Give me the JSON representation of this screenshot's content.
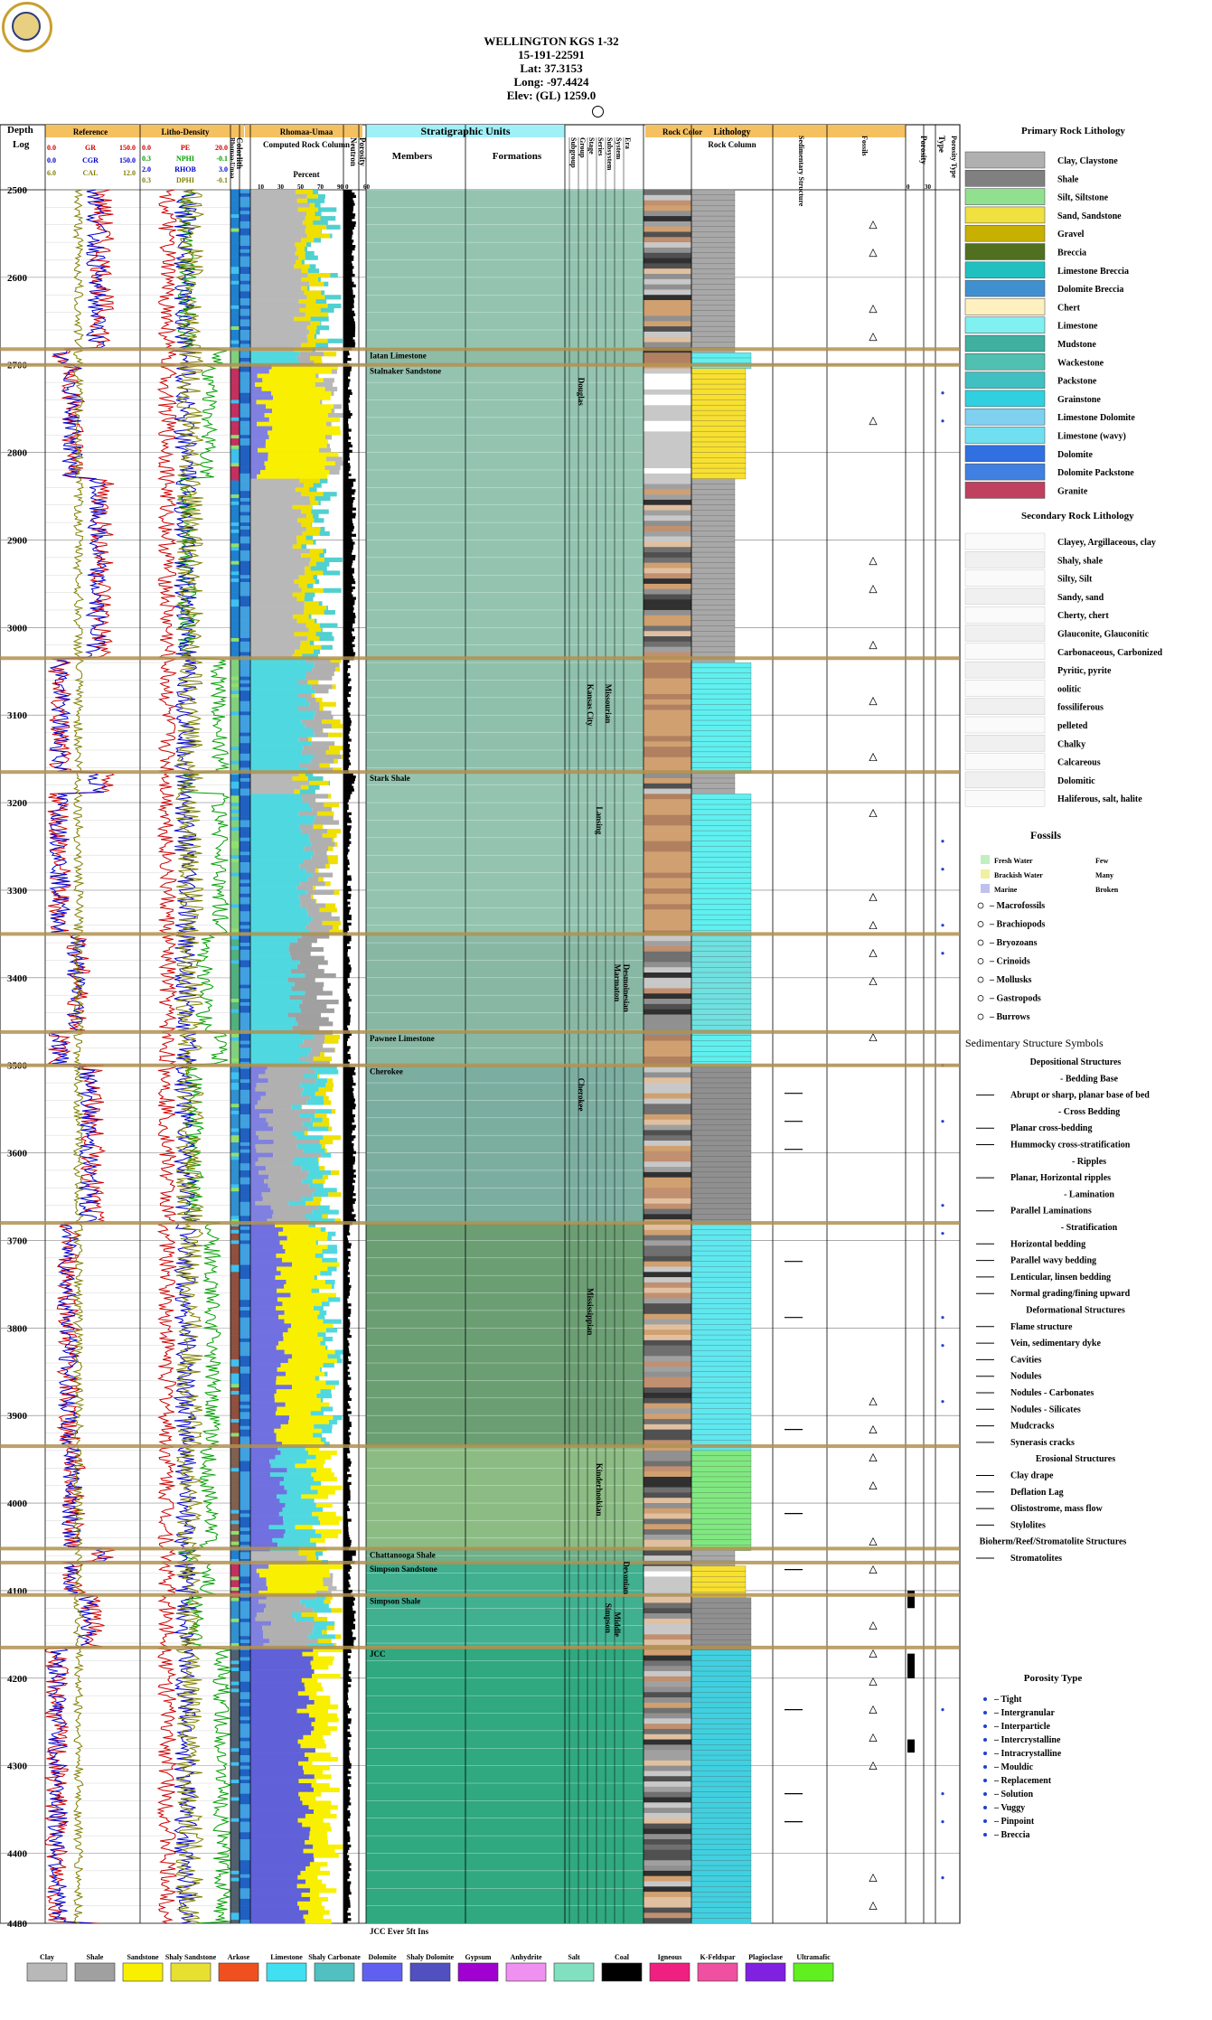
{
  "header": {
    "title": "WELLINGTON KGS 1-32",
    "api": "15-191-22591",
    "lat": "Lat: 37.3153",
    "long": "Long: -97.4424",
    "elev": "Elev: (GL) 1259.0"
  },
  "columns": {
    "depth": "Depth",
    "log": "Log",
    "reference": "Reference",
    "litho_density": "Litho-Density",
    "colorlith": "Colorlith",
    "rhomaa_umaa_short": "Rhomaa-Umaa",
    "rhomaa_umaa": "Rhomaa-Umaa",
    "computed_rock_column": "Computed Rock Column",
    "percent": "Percent",
    "porosity": "Porosity",
    "neutron": "Neutron",
    "stratigraphic_units": "Stratigraphic Units",
    "members": "Members",
    "formations": "Formations",
    "subgroup": "Subgroup",
    "group": "Group",
    "stage": "Stage",
    "series": "Series",
    "subsystem": "Subsystem",
    "system": "System",
    "era": "Era",
    "rock_color": "Rock Color",
    "lithology": "Lithology",
    "rock_column": "Rock Column",
    "sedimentary_structure": "Sedimentary Structure",
    "fossils": "Fossils",
    "porosity2": "Porosity",
    "type": "Type",
    "porosity_type": "Porosity Type"
  },
  "curves": {
    "gr": {
      "name": "GR",
      "min": "0.0",
      "max": "150.0",
      "color": "#d00000"
    },
    "cgr": {
      "name": "CGR",
      "min": "0.0",
      "max": "150.0",
      "color": "#0000d0"
    },
    "cal": {
      "name": "CAL",
      "min": "6.0",
      "max": "12.0",
      "color": "#808000"
    },
    "pe": {
      "name": "PE",
      "min": "0.0",
      "max": "20.0",
      "color": "#d00000"
    },
    "nphi": {
      "name": "NPHI",
      "min": "0.3",
      "max": "-0.1",
      "color": "#00a000"
    },
    "rhob": {
      "name": "RHOB",
      "min": "2.0",
      "max": "3.0",
      "color": "#0000d0"
    },
    "dphi": {
      "name": "DPHI",
      "min": "0.3",
      "max": "-0.1",
      "color": "#808000"
    }
  },
  "percent_ticks": [
    "10",
    "30",
    "50",
    "70",
    "90"
  ],
  "neutron_ticks": [
    "0",
    "60"
  ],
  "porosity_ticks": [
    "0",
    "30"
  ],
  "chart_data": {
    "type": "well_log",
    "ylim": [
      2500,
      4480
    ],
    "depth_ticks": [
      2500,
      2600,
      2700,
      2800,
      2900,
      3000,
      3100,
      3200,
      3300,
      3400,
      3500,
      3600,
      3700,
      3800,
      3900,
      4000,
      4100,
      4200,
      4300,
      4400,
      4480
    ],
    "tops": [
      {
        "depth": 2682,
        "name": "Iatan Limestone"
      },
      {
        "depth": 2700,
        "name": "Stalnaker Sandstone"
      },
      {
        "depth": 3035,
        "name": ""
      },
      {
        "depth": 3165,
        "name": "Stark Shale"
      },
      {
        "depth": 3350,
        "name": ""
      },
      {
        "depth": 3462,
        "name": "Pawnee Limestone"
      },
      {
        "depth": 3500,
        "name": "Cherokee"
      },
      {
        "depth": 3680,
        "name": ""
      },
      {
        "depth": 3935,
        "name": ""
      },
      {
        "depth": 4052,
        "name": "Chattanooga Shale"
      },
      {
        "depth": 4068,
        "name": "Simpson Sandstone"
      },
      {
        "depth": 4105,
        "name": "Simpson Shale"
      },
      {
        "depth": 4165,
        "name": "JCC"
      }
    ],
    "groups": [
      {
        "depth": 2700,
        "name": "Douglas"
      },
      {
        "depth": 3050,
        "name": "Kansas City"
      },
      {
        "depth": 3190,
        "name": "Lansing"
      },
      {
        "depth": 3050,
        "name": "Missourian"
      },
      {
        "depth": 3370,
        "name": "Marmaton"
      },
      {
        "depth": 3370,
        "name": "Desmoinesian"
      },
      {
        "depth": 3500,
        "name": "Cherokee"
      },
      {
        "depth": 3740,
        "name": "Mississippian"
      },
      {
        "depth": 3940,
        "name": "Kinderhookian"
      },
      {
        "depth": 4100,
        "name": "Simpson"
      },
      {
        "depth": 4110,
        "name": "Middle"
      },
      {
        "depth": 4052,
        "name": "Devonian"
      }
    ],
    "bottom_note": "JCC Ever 5ft Ins"
  },
  "legend": {
    "primary_title": "Primary Rock Lithology",
    "primary": [
      {
        "label": "Clay, Claystone",
        "color": "#b0b0b0"
      },
      {
        "label": "Shale",
        "color": "#808080"
      },
      {
        "label": "Silt, Siltstone",
        "color": "#90e090"
      },
      {
        "label": "Sand, Sandstone",
        "color": "#f0e040"
      },
      {
        "label": "Gravel",
        "color": "#c8b000"
      },
      {
        "label": "Breccia",
        "color": "#507020"
      },
      {
        "label": "Limestone Breccia",
        "color": "#20c0c0"
      },
      {
        "label": "Dolomite Breccia",
        "color": "#4090d0"
      },
      {
        "label": "Chert",
        "color": "#fff0c0"
      },
      {
        "label": "Limestone",
        "color": "#80f0f0"
      },
      {
        "label": "Mudstone",
        "color": "#40b0a0"
      },
      {
        "label": "Wackestone",
        "color": "#50c0b0"
      },
      {
        "label": "Packstone",
        "color": "#40c0c0"
      },
      {
        "label": "Grainstone",
        "color": "#30d0e0"
      },
      {
        "label": "Limestone Dolomite",
        "color": "#80d0f0"
      },
      {
        "label": "Limestone (wavy)",
        "color": "#70e0f0"
      },
      {
        "label": "Dolomite",
        "color": "#3070e0"
      },
      {
        "label": "Dolomite Packstone",
        "color": "#4080e0"
      },
      {
        "label": "Granite",
        "color": "#c04060"
      }
    ],
    "secondary_title": "Secondary Rock Lithology",
    "secondary": [
      "Clayey, Argillaceous, clay",
      "Shaly, shale",
      "Silty, Silt",
      "Sandy, sand",
      "Cherty, chert",
      "Glauconite, Glauconitic",
      "Carbonaceous, Carbonized",
      "Pyritic, pyrite",
      "oolitic",
      "fossiliferous",
      "pelleted",
      "Chalky",
      "Calcareous",
      "Dolomitic",
      "Haliferous, salt, halite"
    ],
    "fossils_title": "Fossils",
    "fossil_env": [
      {
        "label": "Fresh Water",
        "color": "#c0f0c0"
      },
      {
        "label": "Brackish Water",
        "color": "#f0f0a0"
      },
      {
        "label": "Marine",
        "color": "#c0c0f0"
      }
    ],
    "fossil_abundance": [
      "Few",
      "Many",
      "Broken"
    ],
    "fossils": [
      "– Macrofossils",
      "– Brachiopods",
      "– Bryozoans",
      "– Crinoids",
      "– Mollusks",
      "– Gastropods",
      "– Burrows"
    ],
    "sed_title": "Sedimentary Structure Symbols",
    "sed_items": [
      {
        "kind": "head",
        "label": "Depositional Structures"
      },
      {
        "kind": "sub",
        "label": "- Bedding Base"
      },
      {
        "kind": "item",
        "label": "Abrupt or sharp, planar base of bed"
      },
      {
        "kind": "sub",
        "label": "- Cross Bedding"
      },
      {
        "kind": "item",
        "label": "Planar cross-bedding"
      },
      {
        "kind": "item",
        "label": "Hummocky cross-stratification"
      },
      {
        "kind": "sub",
        "label": "- Ripples"
      },
      {
        "kind": "item",
        "label": "Planar, Horizontal ripples"
      },
      {
        "kind": "sub",
        "label": "- Lamination"
      },
      {
        "kind": "item",
        "label": "Parallel Laminations"
      },
      {
        "kind": "sub",
        "label": "- Stratification"
      },
      {
        "kind": "item",
        "label": "Horizontal bedding"
      },
      {
        "kind": "item",
        "label": "Parallel wavy bedding"
      },
      {
        "kind": "item",
        "label": "Lenticular, linsen bedding"
      },
      {
        "kind": "item",
        "label": "Normal grading/fining upward"
      },
      {
        "kind": "head",
        "label": "Deformational Structures"
      },
      {
        "kind": "item",
        "label": "Flame structure"
      },
      {
        "kind": "item",
        "label": "Vein, sedimentary dyke"
      },
      {
        "kind": "item",
        "label": "Cavities"
      },
      {
        "kind": "item",
        "label": "Nodules"
      },
      {
        "kind": "item",
        "label": "Nodules - Carbonates"
      },
      {
        "kind": "item",
        "label": "Nodules - Silicates"
      },
      {
        "kind": "item",
        "label": "Mudcracks"
      },
      {
        "kind": "item",
        "label": "Synerasis cracks"
      },
      {
        "kind": "head",
        "label": "Erosional Structures"
      },
      {
        "kind": "item",
        "label": "Clay drape"
      },
      {
        "kind": "item",
        "label": "Deflation Lag"
      },
      {
        "kind": "item",
        "label": "Olistostrome, mass flow"
      },
      {
        "kind": "item",
        "label": "Stylolites"
      },
      {
        "kind": "head2",
        "label": "Bioherm/Reef/Stromatolite Structures"
      },
      {
        "kind": "item",
        "label": "Stromatolites"
      }
    ],
    "porosity_title": "Porosity Type",
    "porosity_types": [
      "– Tight",
      "– Intergranular",
      "– Interparticle",
      "– Intercrystalline",
      "– Intracrystalline",
      "– Mouldic",
      "– Replacement",
      "– Solution",
      "– Vuggy",
      "– Pinpoint",
      "– Breccia"
    ]
  },
  "bottom_legend": [
    {
      "label": "Clay",
      "color": "#b8b8b8"
    },
    {
      "label": "Shale",
      "color": "#a0a0a0"
    },
    {
      "label": "Sandstone",
      "color": "#f8f000"
    },
    {
      "label": "Shaly Sandstone",
      "color": "#e8e030"
    },
    {
      "label": "Arkose",
      "color": "#f05020"
    },
    {
      "label": "Limestone",
      "color": "#40e0f0"
    },
    {
      "label": "Shaly Carbonate",
      "color": "#50c0c0"
    },
    {
      "label": "Dolomite",
      "color": "#6060f0"
    },
    {
      "label": "Shaly Dolomite",
      "color": "#5050c0"
    },
    {
      "label": "Gypsum",
      "color": "#a000d0"
    },
    {
      "label": "Anhydrite",
      "color": "#f090f0"
    },
    {
      "label": "Salt",
      "color": "#80e0c0"
    },
    {
      "label": "Coal",
      "color": "#000000"
    },
    {
      "label": "Igneous",
      "color": "#f02080"
    },
    {
      "label": "K-Feldspar",
      "color": "#f050a0"
    },
    {
      "label": "Plagioclase",
      "color": "#8020e0"
    },
    {
      "label": "Ultramafic",
      "color": "#60f020"
    }
  ]
}
